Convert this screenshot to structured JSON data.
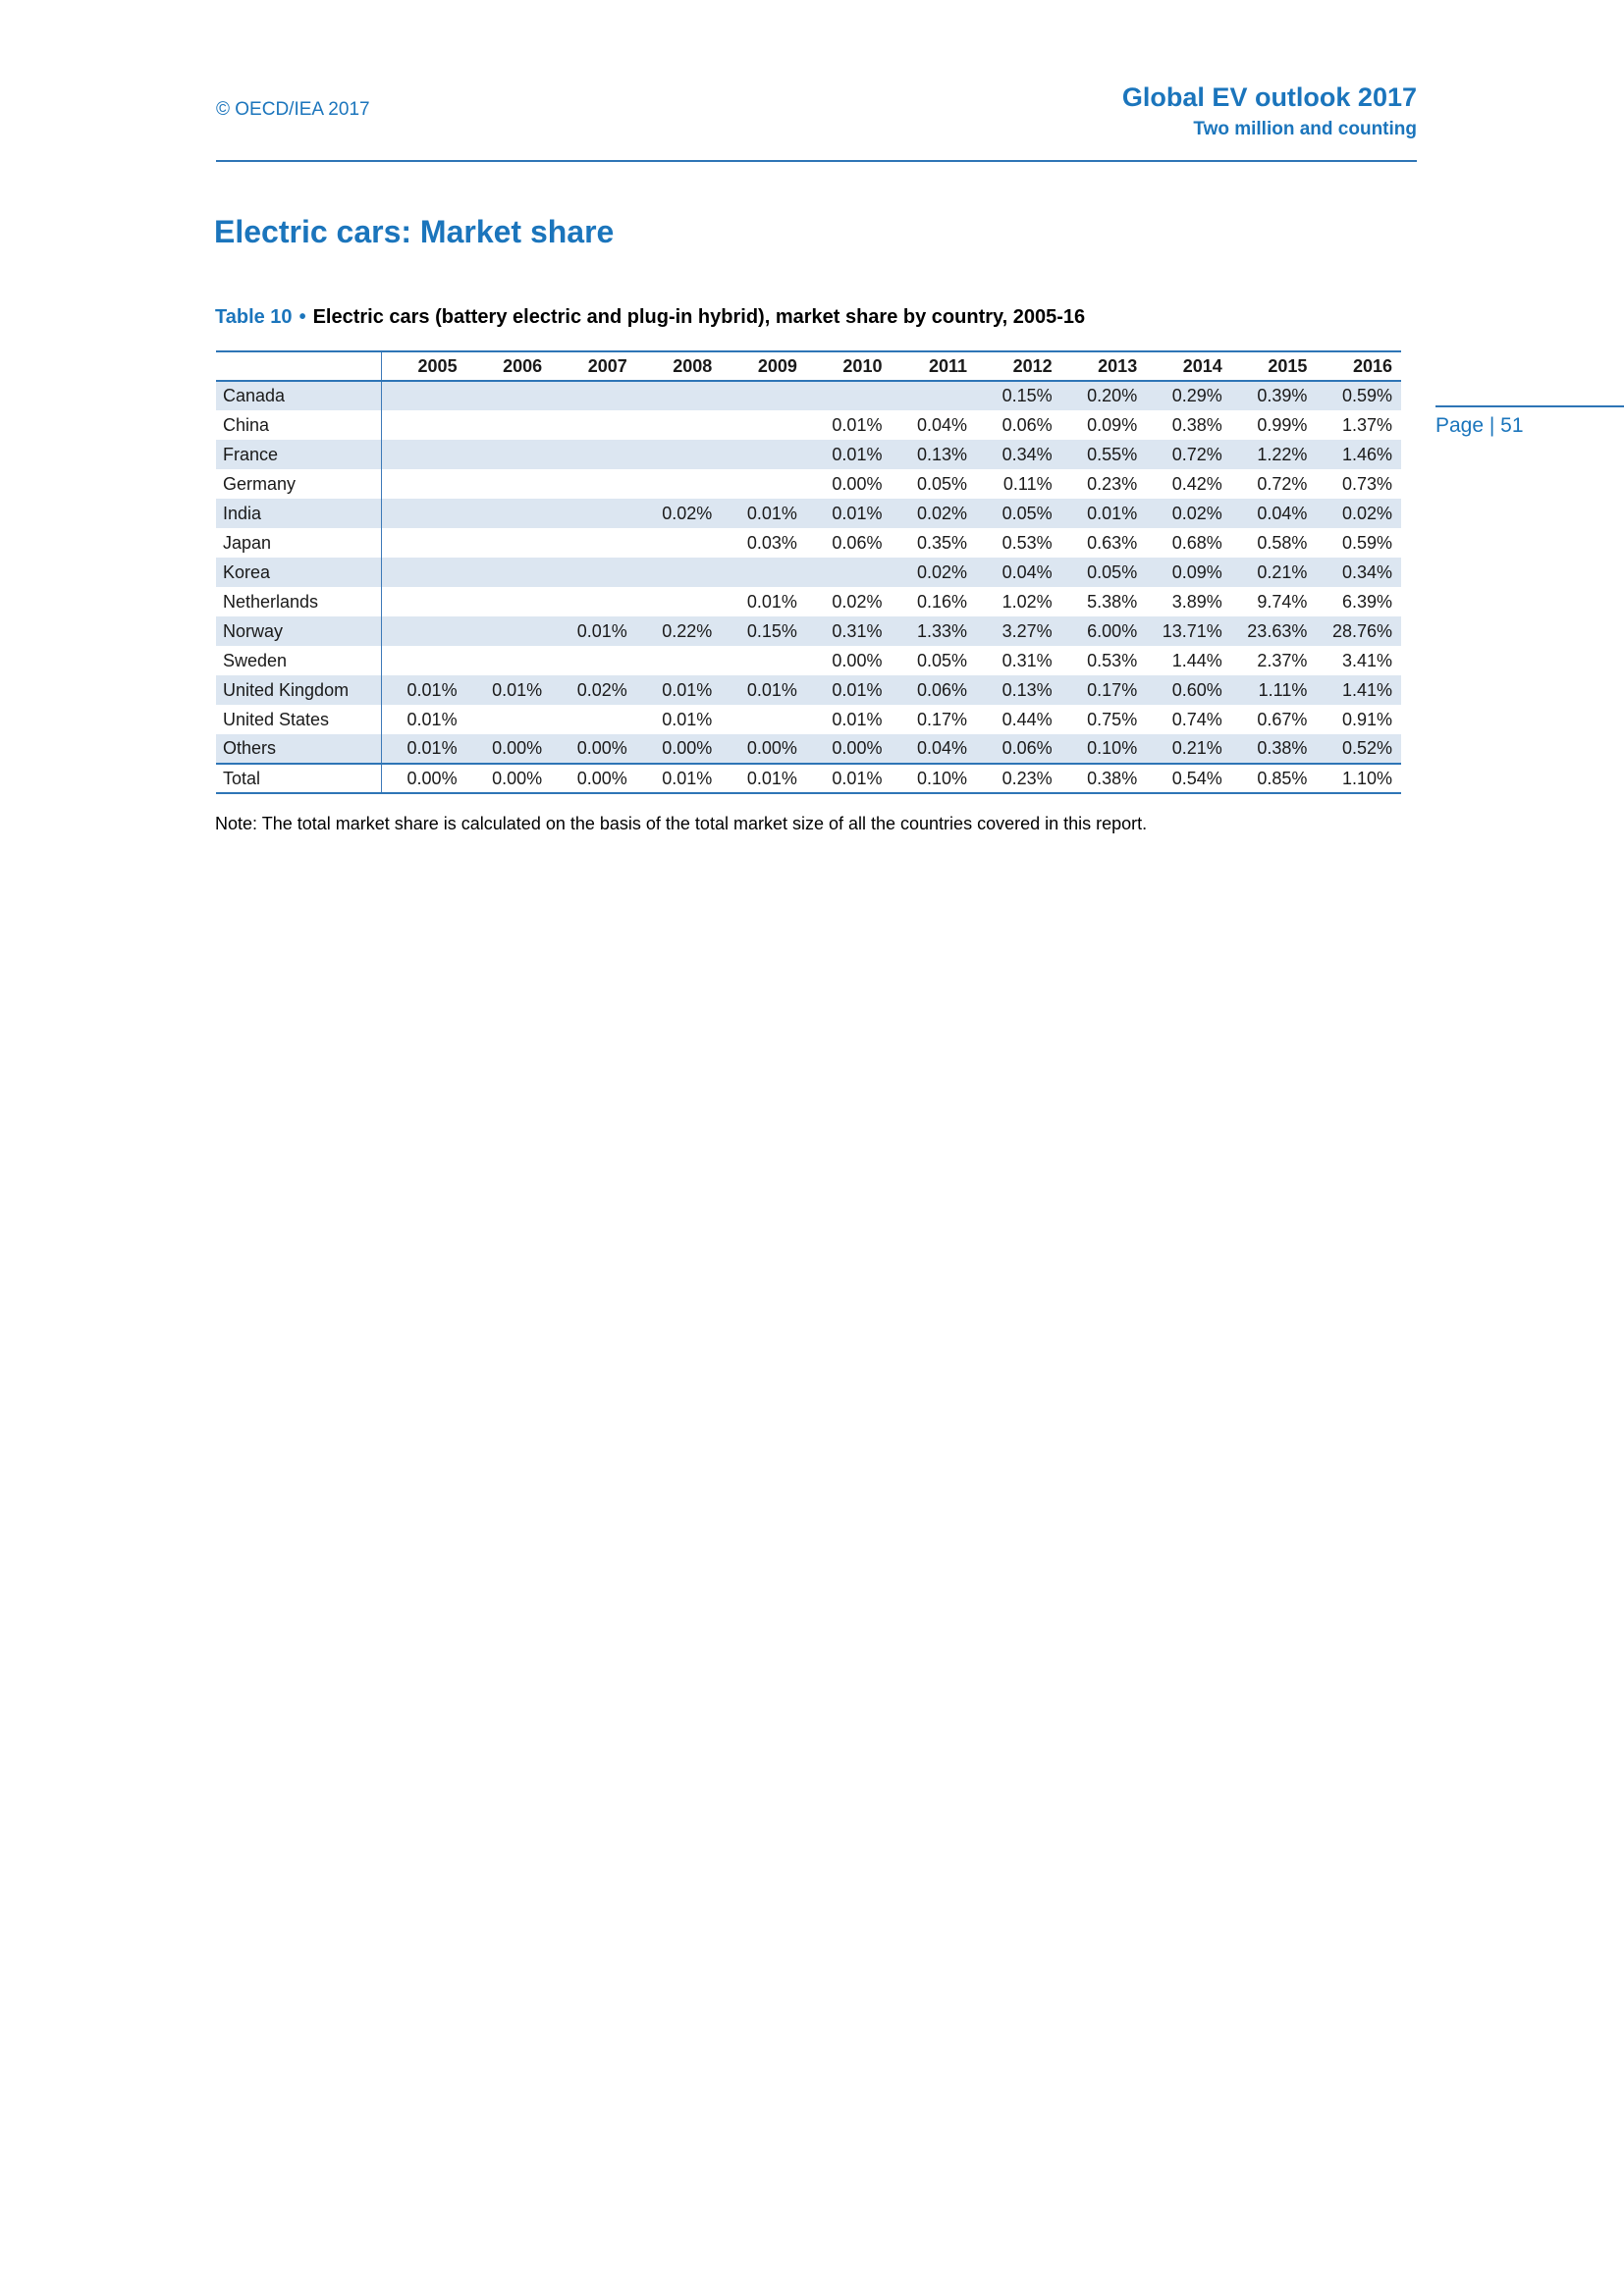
{
  "colors": {
    "accent_blue": "#1B75BC",
    "table_border_blue": "#2E75B6",
    "row_shade": "#DCE6F1"
  },
  "header": {
    "copyright": "© OECD/IEA 2017",
    "title": "Global EV outlook 2017",
    "subtitle": "Two million and counting"
  },
  "page_number": "Page | 51",
  "main": {
    "title": "Electric cars: Market share",
    "caption": {
      "label": "Table 10",
      "bullet": "•",
      "text": "Electric cars (battery electric and plug-in hybrid), market share by country, 2005-16"
    },
    "note": "Note: The total market share is calculated on the basis of the total market size of all the countries covered in this report."
  },
  "table": {
    "columns": [
      "2005",
      "2006",
      "2007",
      "2008",
      "2009",
      "2010",
      "2011",
      "2012",
      "2013",
      "2014",
      "2015",
      "2016"
    ],
    "rows": [
      {
        "label": "Canada",
        "values": [
          "",
          "",
          "",
          "",
          "",
          "",
          "",
          "0.15%",
          "0.20%",
          "0.29%",
          "0.39%",
          "0.59%"
        ]
      },
      {
        "label": "China",
        "values": [
          "",
          "",
          "",
          "",
          "",
          "0.01%",
          "0.04%",
          "0.06%",
          "0.09%",
          "0.38%",
          "0.99%",
          "1.37%"
        ]
      },
      {
        "label": "France",
        "values": [
          "",
          "",
          "",
          "",
          "",
          "0.01%",
          "0.13%",
          "0.34%",
          "0.55%",
          "0.72%",
          "1.22%",
          "1.46%"
        ]
      },
      {
        "label": "Germany",
        "values": [
          "",
          "",
          "",
          "",
          "",
          "0.00%",
          "0.05%",
          "0.11%",
          "0.23%",
          "0.42%",
          "0.72%",
          "0.73%"
        ]
      },
      {
        "label": "India",
        "values": [
          "",
          "",
          "",
          "0.02%",
          "0.01%",
          "0.01%",
          "0.02%",
          "0.05%",
          "0.01%",
          "0.02%",
          "0.04%",
          "0.02%"
        ]
      },
      {
        "label": "Japan",
        "values": [
          "",
          "",
          "",
          "",
          "0.03%",
          "0.06%",
          "0.35%",
          "0.53%",
          "0.63%",
          "0.68%",
          "0.58%",
          "0.59%"
        ]
      },
      {
        "label": "Korea",
        "values": [
          "",
          "",
          "",
          "",
          "",
          "",
          "0.02%",
          "0.04%",
          "0.05%",
          "0.09%",
          "0.21%",
          "0.34%"
        ]
      },
      {
        "label": "Netherlands",
        "values": [
          "",
          "",
          "",
          "",
          "0.01%",
          "0.02%",
          "0.16%",
          "1.02%",
          "5.38%",
          "3.89%",
          "9.74%",
          "6.39%"
        ]
      },
      {
        "label": "Norway",
        "values": [
          "",
          "",
          "0.01%",
          "0.22%",
          "0.15%",
          "0.31%",
          "1.33%",
          "3.27%",
          "6.00%",
          "13.71%",
          "23.63%",
          "28.76%"
        ]
      },
      {
        "label": "Sweden",
        "values": [
          "",
          "",
          "",
          "",
          "",
          "0.00%",
          "0.05%",
          "0.31%",
          "0.53%",
          "1.44%",
          "2.37%",
          "3.41%"
        ]
      },
      {
        "label": "United Kingdom",
        "values": [
          "0.01%",
          "0.01%",
          "0.02%",
          "0.01%",
          "0.01%",
          "0.01%",
          "0.06%",
          "0.13%",
          "0.17%",
          "0.60%",
          "1.11%",
          "1.41%"
        ]
      },
      {
        "label": "United States",
        "values": [
          "0.01%",
          "",
          "",
          "0.01%",
          "",
          "0.01%",
          "0.17%",
          "0.44%",
          "0.75%",
          "0.74%",
          "0.67%",
          "0.91%"
        ]
      },
      {
        "label": "Others",
        "values": [
          "0.01%",
          "0.00%",
          "0.00%",
          "0.00%",
          "0.00%",
          "0.00%",
          "0.04%",
          "0.06%",
          "0.10%",
          "0.21%",
          "0.38%",
          "0.52%"
        ]
      },
      {
        "label": "Total",
        "values": [
          "0.00%",
          "0.00%",
          "0.00%",
          "0.01%",
          "0.01%",
          "0.01%",
          "0.10%",
          "0.23%",
          "0.38%",
          "0.54%",
          "0.85%",
          "1.10%"
        ],
        "is_total": true
      }
    ]
  }
}
